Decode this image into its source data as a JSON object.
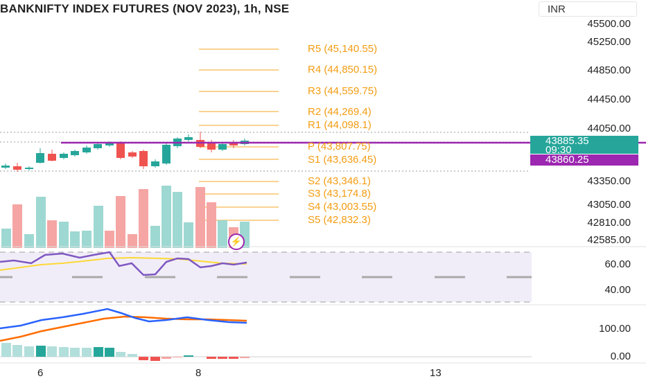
{
  "title": "BANKNIFTY INDEX FUTURES (NOV 2023), 1h, NSE",
  "currency": "INR",
  "price_axis": [
    "45500.00",
    "45250.00",
    "44850.00",
    "44450.00",
    "44050.00",
    "43350.00",
    "43050.00",
    "42810.00",
    "42585.00"
  ],
  "last_price": "43885.35",
  "countdown": "09:30",
  "pivot_price": "43860.25",
  "pivots": [
    "R5 (45,140.55)",
    "R4 (44,850.15)",
    "R3 (44,559.75)",
    "R2 (44,269.4)",
    "R1 (44,098.1)",
    "P (43,807.75)",
    "S1 (43,636.45)",
    "S2 (43,346.1)",
    "S3 (43,174.8)",
    "S4 (43,003.55)",
    "S5 (42,832.3)"
  ],
  "rsi_axis": [
    "60.00",
    "40.00"
  ],
  "macd_axis": [
    "100.00",
    "0.00"
  ],
  "x_axis": [
    "6",
    "8",
    "13"
  ],
  "indicator_icon": "lightning-icon",
  "colors": {
    "up": "#26a69a",
    "down": "#ef5350",
    "pivot": "#f39c12",
    "pivot_line": "#9c27b0",
    "rsi": "#7e57c2",
    "rsi_ma": "#fdd835",
    "macd": "#2962ff",
    "signal": "#ff6d00"
  }
}
